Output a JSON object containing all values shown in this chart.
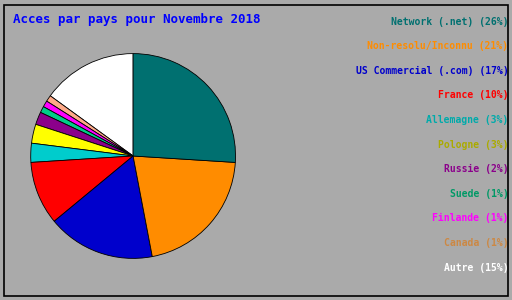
{
  "title": "Acces par pays pour Novembre 2018",
  "percentages": [
    26,
    21,
    17,
    10,
    3,
    3,
    2,
    1,
    1,
    1,
    15
  ],
  "pie_colors": [
    "#007070",
    "#FF8C00",
    "#0000CC",
    "#FF0000",
    "#00CCCC",
    "#FFFF00",
    "#8B008B",
    "#00CC88",
    "#FF00FF",
    "#FFAA88",
    "#FFFFFF"
  ],
  "legend_labels": [
    "Network (.net) (26%)",
    "Non-resolu/Inconnu (21%)",
    "US Commercial (.com) (17%)",
    "France (10%)",
    "Allemagne (3%)",
    "Pologne (3%)",
    "Russie (2%)",
    "Suede (1%)",
    "Finlande (1%)",
    "Canada (1%)",
    "Autre (15%)"
  ],
  "legend_text_colors": [
    "#007070",
    "#FF8C00",
    "#0000CC",
    "#FF0000",
    "#00AAAA",
    "#AAAA00",
    "#8B008B",
    "#009966",
    "#FF00FF",
    "#CC8844",
    "#FFFFFF"
  ],
  "background_color": "#AAAAAA",
  "title_color": "#0000FF",
  "title_fontsize": 9,
  "legend_fontsize": 7,
  "startangle": 90
}
